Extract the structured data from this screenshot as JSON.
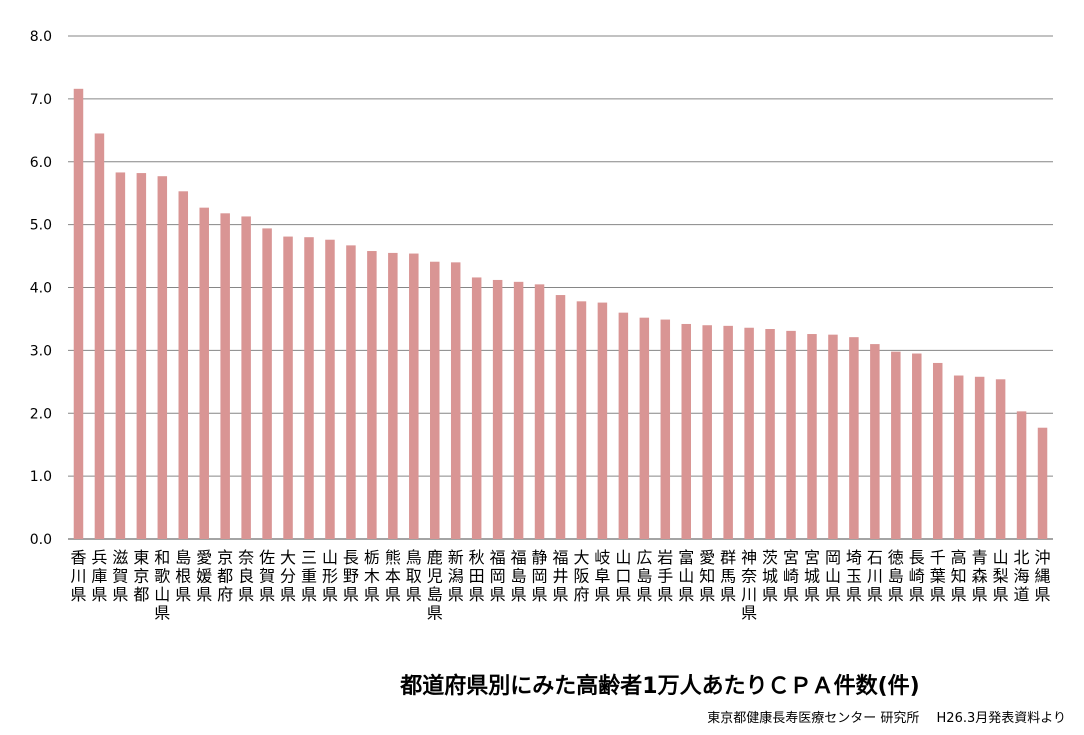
{
  "chart_data": {
    "type": "bar",
    "title": "都道府県別にみた高齢者1万人あたりＣＰＡ件数(件)",
    "source": "東京都健康長寿医療センター 研究所　 H26.3月発表資料より",
    "categories": [
      "香川県",
      "兵庫県",
      "滋賀県",
      "東京都",
      "和歌山県",
      "島根県",
      "愛媛県",
      "京都府",
      "奈良県",
      "佐賀県",
      "大分県",
      "三重県",
      "山形県",
      "長野県",
      "栃木県",
      "熊本県",
      "鳥取県",
      "鹿児島県",
      "新潟県",
      "秋田県",
      "福岡県",
      "福島県",
      "静岡県",
      "福井県",
      "大阪府",
      "岐阜県",
      "山口県",
      "広島県",
      "岩手県",
      "富山県",
      "愛知県",
      "群馬県",
      "神奈川県",
      "茨城県",
      "宮崎県",
      "宮城県",
      "岡山県",
      "埼玉県",
      "石川県",
      "徳島県",
      "長崎県",
      "千葉県",
      "高知県",
      "青森県",
      "山梨県",
      "北海道",
      "沖縄県"
    ],
    "values": [
      7.16,
      6.45,
      5.83,
      5.82,
      5.77,
      5.53,
      5.27,
      5.18,
      5.13,
      4.94,
      4.81,
      4.8,
      4.76,
      4.67,
      4.58,
      4.55,
      4.54,
      4.41,
      4.4,
      4.16,
      4.12,
      4.09,
      4.05,
      3.88,
      3.78,
      3.76,
      3.6,
      3.52,
      3.49,
      3.42,
      3.4,
      3.39,
      3.36,
      3.34,
      3.31,
      3.26,
      3.25,
      3.21,
      3.1,
      2.98,
      2.95,
      2.8,
      2.6,
      2.58,
      2.54,
      2.03,
      1.77
    ],
    "yticks": [
      "0.0",
      "1.0",
      "2.0",
      "3.0",
      "4.0",
      "5.0",
      "6.0",
      "7.0",
      "8.0"
    ],
    "ylim": [
      0,
      8
    ],
    "grid": true,
    "legend": "none",
    "bar_color": "#d99594",
    "grid_color": "#868686"
  }
}
